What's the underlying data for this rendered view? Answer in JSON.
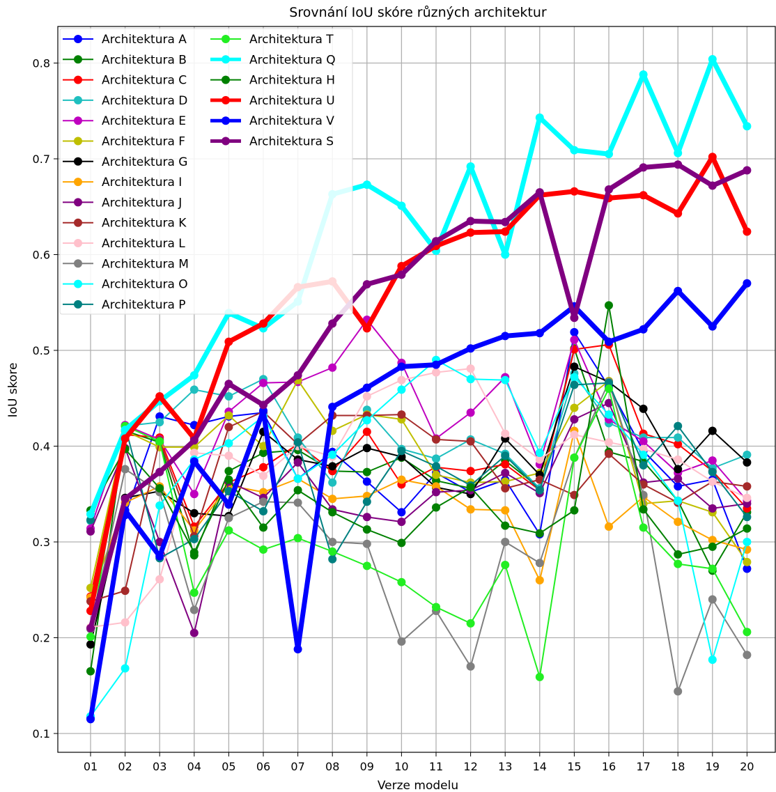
{
  "chart_data": {
    "type": "line",
    "title": "Srovnání IoU skóre různých architektur",
    "xlabel": "Verze modelu",
    "ylabel": "IoU skore",
    "categories": [
      "01",
      "02",
      "03",
      "04",
      "05",
      "06",
      "07",
      "08",
      "09",
      "10",
      "11",
      "12",
      "13",
      "14",
      "15",
      "16",
      "17",
      "18",
      "19",
      "20"
    ],
    "yticks": [
      "0.1",
      "0.2",
      "0.3",
      "0.4",
      "0.5",
      "0.6",
      "0.7",
      "0.8"
    ],
    "ylim": [
      0.075,
      0.84
    ],
    "grid": true,
    "legend_position": "top-left",
    "series": [
      {
        "name": "Architektura A",
        "color": "#0000ff",
        "bold": false,
        "values": [
          0.117,
          0.328,
          0.431,
          0.422,
          0.431,
          0.435,
          0.366,
          0.394,
          0.363,
          0.331,
          0.372,
          0.352,
          0.365,
          0.308,
          0.519,
          0.462,
          0.395,
          0.358,
          0.365,
          0.272
        ]
      },
      {
        "name": "Architektura B",
        "color": "#008000",
        "bold": false,
        "values": [
          0.165,
          0.416,
          0.404,
          0.286,
          0.374,
          0.393,
          0.396,
          0.374,
          0.373,
          0.388,
          0.364,
          0.356,
          0.385,
          0.356,
          0.502,
          0.394,
          0.384,
          0.343,
          0.27,
          0.331
        ]
      },
      {
        "name": "Architektura C",
        "color": "#ff0000",
        "bold": false,
        "values": [
          0.243,
          0.412,
          0.409,
          0.316,
          0.362,
          0.378,
          0.402,
          0.374,
          0.415,
          0.36,
          0.378,
          0.374,
          0.381,
          0.354,
          0.501,
          0.506,
          0.413,
          0.402,
          0.374,
          0.335
        ]
      },
      {
        "name": "Architektura D",
        "color": "#1fbfbf",
        "bold": false,
        "values": [
          0.322,
          0.421,
          0.425,
          0.459,
          0.452,
          0.47,
          0.409,
          0.362,
          0.438,
          0.397,
          0.387,
          0.407,
          0.392,
          0.356,
          0.476,
          0.424,
          0.409,
          0.409,
          0.377,
          0.391
        ]
      },
      {
        "name": "Architektura E",
        "color": "#bf00bf",
        "bold": false,
        "values": [
          0.314,
          0.422,
          0.407,
          0.35,
          0.436,
          0.466,
          0.467,
          0.482,
          0.532,
          0.487,
          0.408,
          0.435,
          0.472,
          0.381,
          0.511,
          0.428,
          0.405,
          0.372,
          0.385,
          0.343
        ]
      },
      {
        "name": "Architektura F",
        "color": "#bfbf00",
        "bold": false,
        "values": [
          0.252,
          0.416,
          0.399,
          0.399,
          0.432,
          0.4,
          0.469,
          0.416,
          0.433,
          0.428,
          0.37,
          0.362,
          0.363,
          0.372,
          0.44,
          0.468,
          0.34,
          0.343,
          0.331,
          0.279
        ]
      },
      {
        "name": "Architektura G",
        "color": "#000000",
        "bold": false,
        "values": [
          0.193,
          0.346,
          0.353,
          0.33,
          0.327,
          0.415,
          0.386,
          0.379,
          0.398,
          0.389,
          0.357,
          0.35,
          0.408,
          0.37,
          0.483,
          0.467,
          0.439,
          0.376,
          0.416,
          0.383
        ]
      },
      {
        "name": "Architektura I",
        "color": "#ffa500",
        "bold": false,
        "values": [
          0.242,
          0.341,
          0.358,
          0.312,
          0.359,
          0.352,
          0.366,
          0.345,
          0.348,
          0.365,
          0.358,
          0.334,
          0.333,
          0.26,
          0.416,
          0.316,
          0.347,
          0.321,
          0.302,
          0.292
        ]
      },
      {
        "name": "Architektura J",
        "color": "#800080",
        "bold": false,
        "values": [
          0.311,
          0.398,
          0.3,
          0.205,
          0.363,
          0.346,
          0.383,
          0.334,
          0.326,
          0.321,
          0.352,
          0.354,
          0.372,
          0.351,
          0.428,
          0.445,
          0.362,
          0.366,
          0.335,
          0.34
        ]
      },
      {
        "name": "Architektura K",
        "color": "#a52a2a",
        "bold": false,
        "values": [
          0.238,
          0.249,
          0.406,
          0.306,
          0.42,
          0.436,
          0.402,
          0.432,
          0.432,
          0.433,
          0.407,
          0.405,
          0.356,
          0.365,
          0.349,
          0.392,
          0.36,
          0.341,
          0.363,
          0.358
        ]
      },
      {
        "name": "Architektura L",
        "color": "#ffc0cb",
        "bold": false,
        "values": [
          0.211,
          0.216,
          0.261,
          0.393,
          0.39,
          0.369,
          0.4,
          0.389,
          0.452,
          0.469,
          0.477,
          0.481,
          0.413,
          0.386,
          0.412,
          0.404,
          0.397,
          0.386,
          0.363,
          0.346
        ]
      },
      {
        "name": "Architektura M",
        "color": "#808080",
        "bold": false,
        "values": [
          0.209,
          0.376,
          0.352,
          0.229,
          0.325,
          0.342,
          0.341,
          0.3,
          0.298,
          0.196,
          0.228,
          0.17,
          0.3,
          0.278,
          0.388,
          0.467,
          0.349,
          0.144,
          0.24,
          0.182
        ]
      },
      {
        "name": "Architektura O",
        "color": "#00ffff",
        "bold": false,
        "values": [
          0.118,
          0.168,
          0.338,
          0.386,
          0.403,
          0.431,
          0.366,
          0.391,
          0.427,
          0.459,
          0.49,
          0.47,
          0.469,
          0.393,
          0.472,
          0.433,
          0.391,
          0.343,
          0.177,
          0.3
        ]
      },
      {
        "name": "Architektura P",
        "color": "#008080",
        "bold": false,
        "values": [
          0.323,
          0.421,
          0.283,
          0.303,
          0.353,
          0.332,
          0.404,
          0.282,
          0.342,
          0.395,
          0.379,
          0.359,
          0.39,
          0.354,
          0.464,
          0.466,
          0.38,
          0.421,
          0.373,
          0.326
        ]
      },
      {
        "name": "Architektura T",
        "color": "#22ee22",
        "bold": false,
        "values": [
          0.201,
          0.421,
          0.405,
          0.247,
          0.312,
          0.292,
          0.304,
          0.29,
          0.275,
          0.258,
          0.232,
          0.215,
          0.276,
          0.159,
          0.388,
          0.46,
          0.315,
          0.277,
          0.272,
          0.206
        ]
      },
      {
        "name": "Architektura Q",
        "color": "#00ffff",
        "bold": true,
        "values": [
          0.329,
          0.417,
          0.447,
          0.474,
          0.539,
          0.523,
          0.551,
          0.663,
          0.673,
          0.651,
          0.604,
          0.692,
          0.6,
          0.743,
          0.709,
          0.705,
          0.788,
          0.706,
          0.804,
          0.734
        ]
      },
      {
        "name": "Architektura H",
        "color": "#008000",
        "bold": false,
        "values": [
          0.333,
          0.397,
          0.356,
          0.289,
          0.365,
          0.315,
          0.354,
          0.331,
          0.313,
          0.299,
          0.336,
          0.357,
          0.317,
          0.309,
          0.333,
          0.547,
          0.334,
          0.287,
          0.295,
          0.314
        ]
      },
      {
        "name": "Architektura U",
        "color": "#ff0000",
        "bold": true,
        "values": [
          0.228,
          0.408,
          0.452,
          0.408,
          0.509,
          0.528,
          0.566,
          0.572,
          0.523,
          0.588,
          0.609,
          0.623,
          0.624,
          0.662,
          0.666,
          0.659,
          0.662,
          0.643,
          0.702,
          0.624
        ]
      },
      {
        "name": "Architektura V",
        "color": "#0000ff",
        "bold": true,
        "values": [
          0.115,
          0.333,
          0.285,
          0.384,
          0.339,
          0.437,
          0.188,
          0.441,
          0.461,
          0.483,
          0.485,
          0.502,
          0.515,
          0.518,
          0.546,
          0.509,
          0.522,
          0.562,
          0.525,
          0.57
        ]
      },
      {
        "name": "Architektura S",
        "color": "#800080",
        "bold": true,
        "values": [
          0.21,
          0.345,
          0.373,
          0.406,
          0.465,
          0.443,
          0.474,
          0.528,
          0.569,
          0.579,
          0.614,
          0.635,
          0.634,
          0.665,
          0.534,
          0.668,
          0.691,
          0.694,
          0.672,
          0.688
        ]
      }
    ]
  }
}
